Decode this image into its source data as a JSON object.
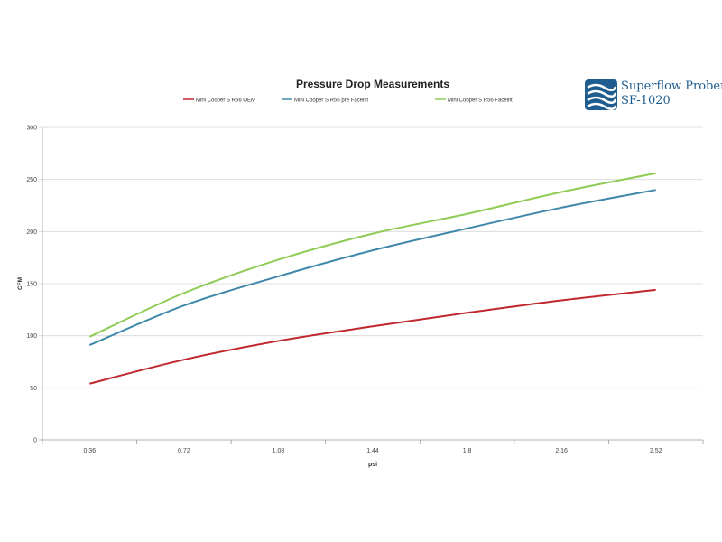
{
  "logo": {
    "line1": "Superflow Probench",
    "line2": "SF-1020"
  },
  "chart_data": {
    "type": "line",
    "title": "Pressure Drop Measurements",
    "xlabel": "psi",
    "ylabel": "CFM",
    "categories": [
      "0,36",
      "0,72",
      "1,08",
      "1,44",
      "1,8",
      "2,16",
      "2,52"
    ],
    "ylim": [
      0,
      300
    ],
    "yticks": [
      0,
      50,
      100,
      150,
      200,
      250,
      300
    ],
    "grid": "horizontal",
    "legend_position": "top",
    "series": [
      {
        "name": "Mini Cooper S R56 OEM",
        "color": "#c0272d",
        "values": [
          54,
          77,
          95,
          109,
          122,
          134,
          144
        ]
      },
      {
        "name": "Mini Cooper S R56 pre Facelift",
        "color": "#3f88aa",
        "values": [
          91,
          129,
          157,
          182,
          203,
          223,
          240
        ]
      },
      {
        "name": "Mini Cooper S R56 Facelift",
        "color": "#8fcb55",
        "values": [
          99,
          141,
          173,
          198,
          217,
          238,
          256
        ]
      }
    ]
  }
}
